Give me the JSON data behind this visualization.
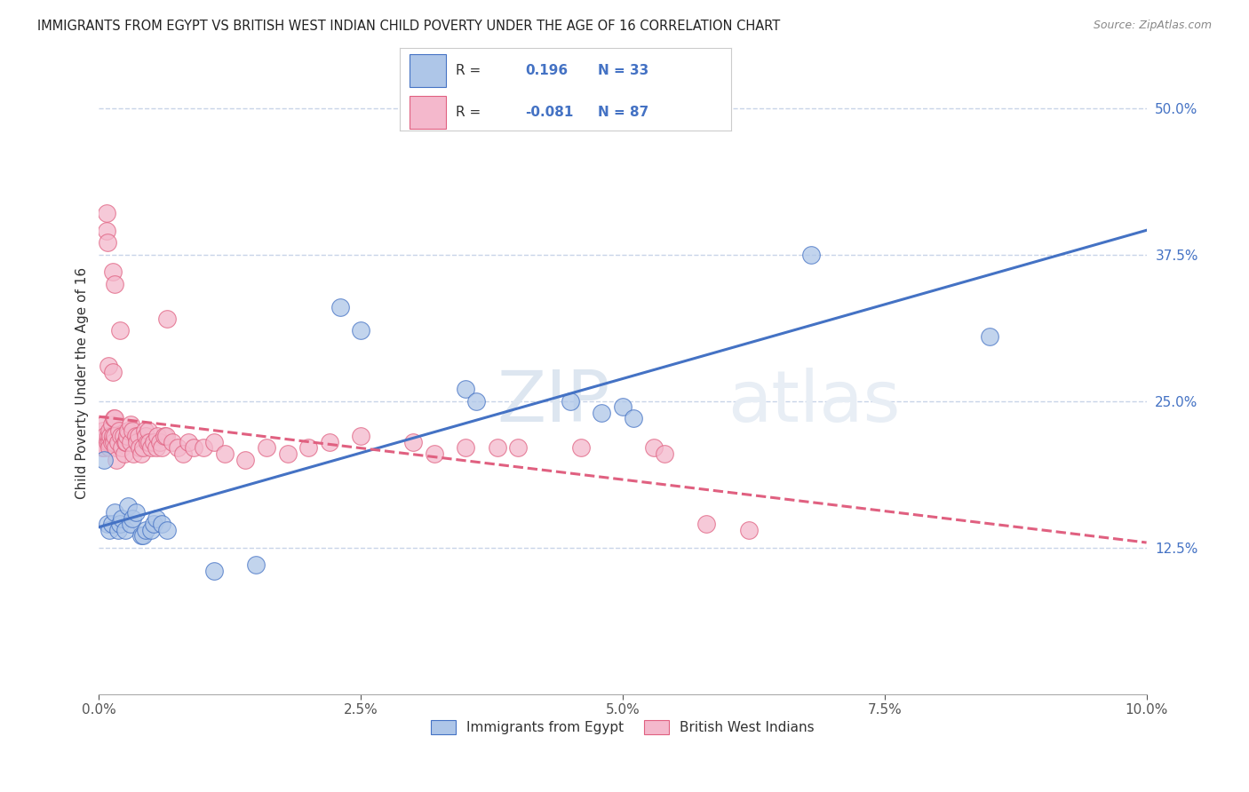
{
  "title": "IMMIGRANTS FROM EGYPT VS BRITISH WEST INDIAN CHILD POVERTY UNDER THE AGE OF 16 CORRELATION CHART",
  "source": "Source: ZipAtlas.com",
  "ylabel": "Child Poverty Under the Age of 16",
  "x_tick_labels": [
    "0.0%",
    "2.5%",
    "5.0%",
    "7.5%",
    "10.0%"
  ],
  "x_tick_vals": [
    0.0,
    2.5,
    5.0,
    7.5,
    10.0
  ],
  "y_tick_labels_right": [
    "12.5%",
    "25.0%",
    "37.5%",
    "50.0%"
  ],
  "y_tick_vals_right": [
    12.5,
    25.0,
    37.5,
    50.0
  ],
  "legend_label1": "Immigrants from Egypt",
  "legend_label2": "British West Indians",
  "R1": "0.196",
  "N1": "33",
  "R2": "-0.081",
  "N2": "87",
  "blue_color": "#aec6e8",
  "pink_color": "#f4b8cc",
  "blue_line_color": "#4472c4",
  "pink_line_color": "#e06080",
  "blue_scatter": [
    [
      0.05,
      20.0
    ],
    [
      0.08,
      14.5
    ],
    [
      0.1,
      14.0
    ],
    [
      0.12,
      14.5
    ],
    [
      0.15,
      15.5
    ],
    [
      0.18,
      14.0
    ],
    [
      0.2,
      14.5
    ],
    [
      0.22,
      15.0
    ],
    [
      0.25,
      14.0
    ],
    [
      0.28,
      16.0
    ],
    [
      0.3,
      14.5
    ],
    [
      0.32,
      15.0
    ],
    [
      0.35,
      15.5
    ],
    [
      0.4,
      13.5
    ],
    [
      0.42,
      13.5
    ],
    [
      0.45,
      14.0
    ],
    [
      0.5,
      14.0
    ],
    [
      0.52,
      14.5
    ],
    [
      0.55,
      15.0
    ],
    [
      0.6,
      14.5
    ],
    [
      0.65,
      14.0
    ],
    [
      1.1,
      10.5
    ],
    [
      1.5,
      11.0
    ],
    [
      2.3,
      33.0
    ],
    [
      2.5,
      31.0
    ],
    [
      3.5,
      26.0
    ],
    [
      3.6,
      25.0
    ],
    [
      4.5,
      25.0
    ],
    [
      4.8,
      24.0
    ],
    [
      5.0,
      24.5
    ],
    [
      5.1,
      23.5
    ],
    [
      6.8,
      37.5
    ],
    [
      8.5,
      30.5
    ]
  ],
  "pink_scatter": [
    [
      0.02,
      21.5
    ],
    [
      0.03,
      21.0
    ],
    [
      0.04,
      22.5
    ],
    [
      0.05,
      21.0
    ],
    [
      0.05,
      23.0
    ],
    [
      0.06,
      22.0
    ],
    [
      0.07,
      39.5
    ],
    [
      0.07,
      41.0
    ],
    [
      0.08,
      38.5
    ],
    [
      0.08,
      21.5
    ],
    [
      0.09,
      22.0
    ],
    [
      0.09,
      28.0
    ],
    [
      0.1,
      21.5
    ],
    [
      0.1,
      21.0
    ],
    [
      0.1,
      22.5
    ],
    [
      0.11,
      22.0
    ],
    [
      0.12,
      21.5
    ],
    [
      0.12,
      23.0
    ],
    [
      0.13,
      22.0
    ],
    [
      0.13,
      27.5
    ],
    [
      0.13,
      36.0
    ],
    [
      0.14,
      21.5
    ],
    [
      0.14,
      23.5
    ],
    [
      0.15,
      22.0
    ],
    [
      0.15,
      23.5
    ],
    [
      0.15,
      35.0
    ],
    [
      0.16,
      21.0
    ],
    [
      0.17,
      20.0
    ],
    [
      0.18,
      21.5
    ],
    [
      0.19,
      22.5
    ],
    [
      0.2,
      31.0
    ],
    [
      0.21,
      22.0
    ],
    [
      0.22,
      21.0
    ],
    [
      0.23,
      22.0
    ],
    [
      0.24,
      20.5
    ],
    [
      0.25,
      21.5
    ],
    [
      0.26,
      21.5
    ],
    [
      0.27,
      22.0
    ],
    [
      0.28,
      22.5
    ],
    [
      0.3,
      21.5
    ],
    [
      0.3,
      23.0
    ],
    [
      0.32,
      22.5
    ],
    [
      0.33,
      20.5
    ],
    [
      0.35,
      22.0
    ],
    [
      0.36,
      21.5
    ],
    [
      0.38,
      22.0
    ],
    [
      0.39,
      21.0
    ],
    [
      0.4,
      20.5
    ],
    [
      0.42,
      21.0
    ],
    [
      0.44,
      22.5
    ],
    [
      0.45,
      22.0
    ],
    [
      0.46,
      21.5
    ],
    [
      0.47,
      22.5
    ],
    [
      0.48,
      21.5
    ],
    [
      0.5,
      21.0
    ],
    [
      0.52,
      21.5
    ],
    [
      0.55,
      21.0
    ],
    [
      0.56,
      22.0
    ],
    [
      0.58,
      21.5
    ],
    [
      0.6,
      21.0
    ],
    [
      0.62,
      22.0
    ],
    [
      0.64,
      22.0
    ],
    [
      0.65,
      32.0
    ],
    [
      0.7,
      21.5
    ],
    [
      0.75,
      21.0
    ],
    [
      0.8,
      20.5
    ],
    [
      0.85,
      21.5
    ],
    [
      0.9,
      21.0
    ],
    [
      1.0,
      21.0
    ],
    [
      1.1,
      21.5
    ],
    [
      1.2,
      20.5
    ],
    [
      1.4,
      20.0
    ],
    [
      1.6,
      21.0
    ],
    [
      1.8,
      20.5
    ],
    [
      2.0,
      21.0
    ],
    [
      2.2,
      21.5
    ],
    [
      2.5,
      22.0
    ],
    [
      3.0,
      21.5
    ],
    [
      3.2,
      20.5
    ],
    [
      3.5,
      21.0
    ],
    [
      3.8,
      21.0
    ],
    [
      4.0,
      21.0
    ],
    [
      4.6,
      21.0
    ],
    [
      5.3,
      21.0
    ],
    [
      5.4,
      20.5
    ],
    [
      5.8,
      14.5
    ],
    [
      6.2,
      14.0
    ]
  ],
  "xmin": 0.0,
  "xmax": 10.0,
  "ymin": 0.0,
  "ymax": 53.0,
  "watermark_zip": "ZIP",
  "watermark_atlas": "atlas",
  "grid_color": "#c8d4e8",
  "background_color": "#ffffff"
}
